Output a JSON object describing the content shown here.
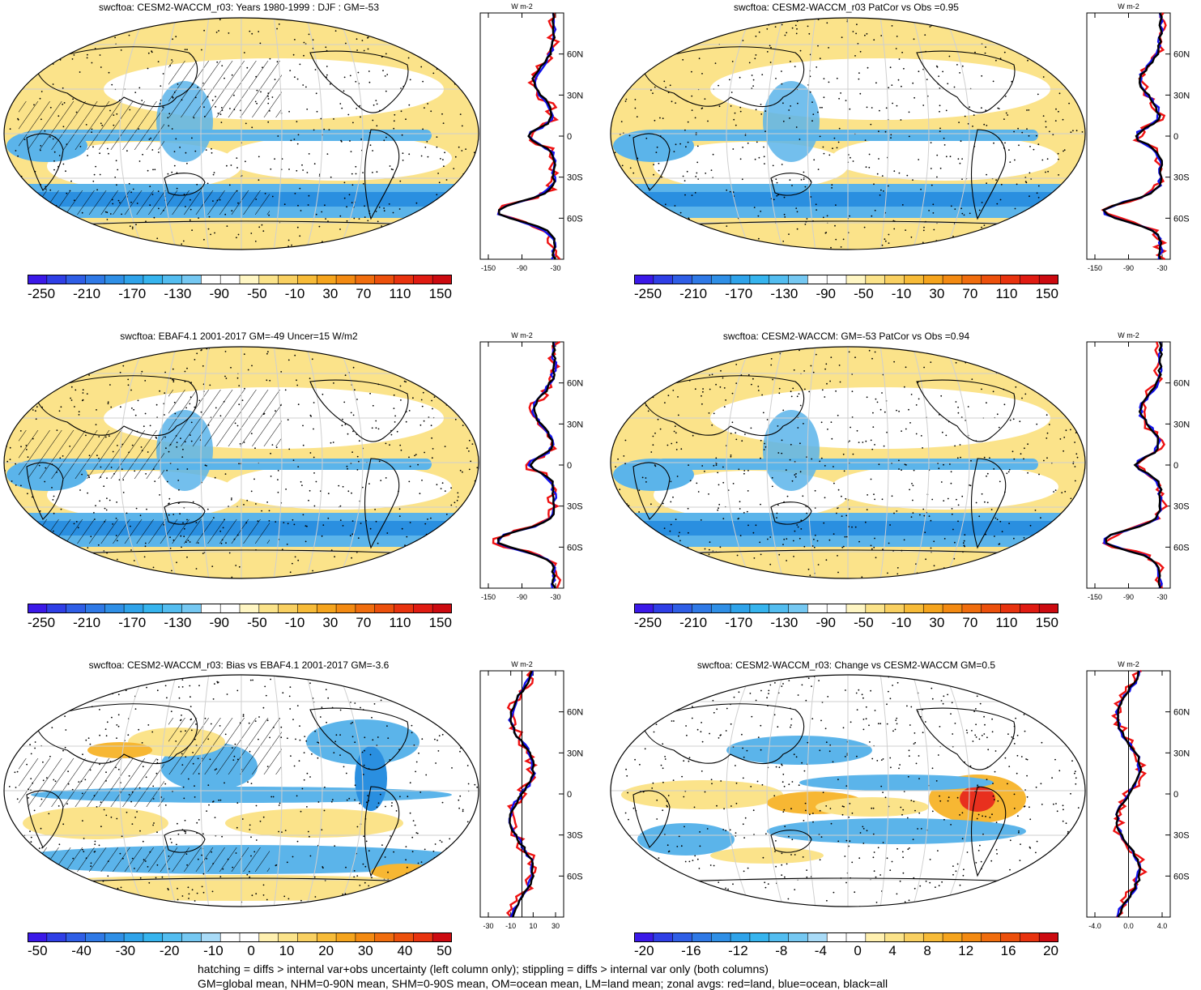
{
  "colors": {
    "ocean_cool": "#5bb4ea",
    "deep_cool": "#2a8fe0",
    "warm": "#fbe38a",
    "warm_strong": "#f7b733",
    "hot": "#e8301e",
    "white": "#ffffff",
    "land_line": "#000000",
    "curve_land": "#ee1111",
    "curve_ocean": "#1111ee",
    "curve_all": "#000000"
  },
  "panels": [
    {
      "id": "p1",
      "title": "swcftoa: CESM2-WACCM_r03: Years 1980-1999 : DJF : GM=-53",
      "zonal_units": "W m-2",
      "zonal_xticks": [
        "-150",
        "-90",
        "-30"
      ],
      "zonal_yticks": [
        "60N",
        "30N",
        "0",
        "30S",
        "60S"
      ],
      "cbar_labels": [
        "-250",
        "-210",
        "-170",
        "-130",
        "-90",
        "-50",
        "-10",
        "30",
        "70",
        "110",
        "150"
      ]
    },
    {
      "id": "p2",
      "title": "swcftoa: CESM2-WACCM_r03 PatCor vs Obs =0.95",
      "zonal_units": "W m-2",
      "zonal_xticks": [
        "-150",
        "-90",
        "-30"
      ],
      "zonal_yticks": [
        "60N",
        "30N",
        "0",
        "30S",
        "60S"
      ],
      "cbar_labels": [
        "-250",
        "-210",
        "-170",
        "-130",
        "-90",
        "-50",
        "-10",
        "30",
        "70",
        "110",
        "150"
      ]
    },
    {
      "id": "p3",
      "title": "swcftoa: EBAF4.1 2001-2017 GM=-49 Uncer=15 W/m2",
      "zonal_units": "W m-2",
      "zonal_xticks": [
        "-150",
        "-90",
        "-30"
      ],
      "zonal_yticks": [
        "60N",
        "30N",
        "0",
        "30S",
        "60S"
      ],
      "cbar_labels": [
        "-250",
        "-210",
        "-170",
        "-130",
        "-90",
        "-50",
        "-10",
        "30",
        "70",
        "110",
        "150"
      ]
    },
    {
      "id": "p4",
      "title": "swcftoa: CESM2-WACCM: GM=-53 PatCor vs Obs =0.94",
      "zonal_units": "W m-2",
      "zonal_xticks": [
        "-150",
        "-90",
        "-30"
      ],
      "zonal_yticks": [
        "60N",
        "30N",
        "0",
        "30S",
        "60S"
      ],
      "cbar_labels": [
        "-250",
        "-210",
        "-170",
        "-130",
        "-90",
        "-50",
        "-10",
        "30",
        "70",
        "110",
        "150"
      ]
    },
    {
      "id": "p5",
      "title": "swcftoa: CESM2-WACCM_r03: Bias vs EBAF4.1 2001-2017 GM=-3.6",
      "zonal_units": "W m-2",
      "zonal_xticks": [
        "-30",
        "-10",
        "10",
        "30"
      ],
      "zonal_yticks": [
        "60N",
        "30N",
        "0",
        "30S",
        "60S"
      ],
      "cbar_labels": [
        "-50",
        "-40",
        "-30",
        "-20",
        "-10",
        "0",
        "10",
        "20",
        "30",
        "40",
        "50"
      ]
    },
    {
      "id": "p6",
      "title": "swcftoa: CESM2-WACCM_r03: Change vs CESM2-WACCM GM=0.5",
      "zonal_units": "W m-2",
      "zonal_xticks": [
        "-4.0",
        "0.0",
        "4.0"
      ],
      "zonal_yticks": [
        "60N",
        "30N",
        "0",
        "30S",
        "60S"
      ],
      "cbar_labels": [
        "-20",
        "-16",
        "-12",
        "-8",
        "-4",
        "0",
        "4",
        "8",
        "12",
        "16",
        "20"
      ]
    }
  ],
  "footer": {
    "line1": "hatching = diffs > internal var+obs uncertainty (left column only); stippling = diffs > internal var only (both columns)",
    "line2": "GM=global mean, NHM=0-90N mean, SHM=0-90S mean, OM=ocean mean, LM=land mean; zonal avgs: red=land, blue=ocean, black=all"
  }
}
